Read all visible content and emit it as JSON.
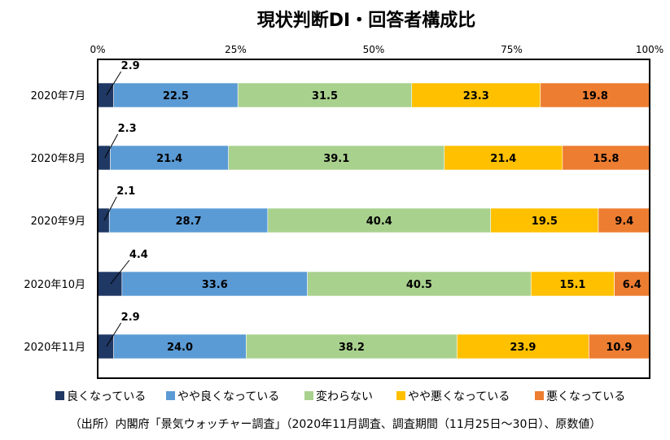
{
  "chart_data": {
    "type": "bar",
    "orientation": "horizontal",
    "stacked": "percent",
    "title": "現状判断DI・回答者構成比",
    "categories": [
      "2020年7月",
      "2020年8月",
      "2020年9月",
      "2020年10月",
      "2020年11月"
    ],
    "x_ticks": [
      "0%",
      "25%",
      "50%",
      "75%",
      "100%"
    ],
    "xlim": [
      0,
      100
    ],
    "grid": false,
    "legend_position": "bottom",
    "series": [
      {
        "name": "良くなっている",
        "color": "#1F3864",
        "values": [
          2.9,
          2.3,
          2.1,
          4.4,
          2.9
        ],
        "labels": [
          "2.9",
          "2.3",
          "2.1",
          "4.4",
          "2.9"
        ],
        "label_position": "above"
      },
      {
        "name": "やや良くなっている",
        "color": "#5B9BD5",
        "values": [
          22.5,
          21.4,
          28.7,
          33.6,
          24.0
        ],
        "labels": [
          "22.5",
          "21.4",
          "28.7",
          "33.6",
          "24.0"
        ]
      },
      {
        "name": "変わらない",
        "color": "#A9D18E",
        "values": [
          31.5,
          39.1,
          40.4,
          40.5,
          38.2
        ],
        "labels": [
          "31.5",
          "39.1",
          "40.4",
          "40.5",
          "38.2"
        ]
      },
      {
        "name": "やや悪くなっている",
        "color": "#FFC000",
        "values": [
          23.3,
          21.4,
          19.5,
          15.1,
          23.9
        ],
        "labels": [
          "23.3",
          "21.4",
          "19.5",
          "15.1",
          "23.9"
        ]
      },
      {
        "name": "悪くなっている",
        "color": "#ED7D31",
        "values": [
          19.8,
          15.8,
          9.4,
          6.4,
          10.9
        ],
        "labels": [
          "19.8",
          "15.8",
          "9.4",
          "6.4",
          "10.9"
        ]
      }
    ]
  },
  "source_note": "（出所）内閣府「景気ウォッチャー調査」（2020年11月調査、調査期間（11月25日～30日）、原数値）"
}
